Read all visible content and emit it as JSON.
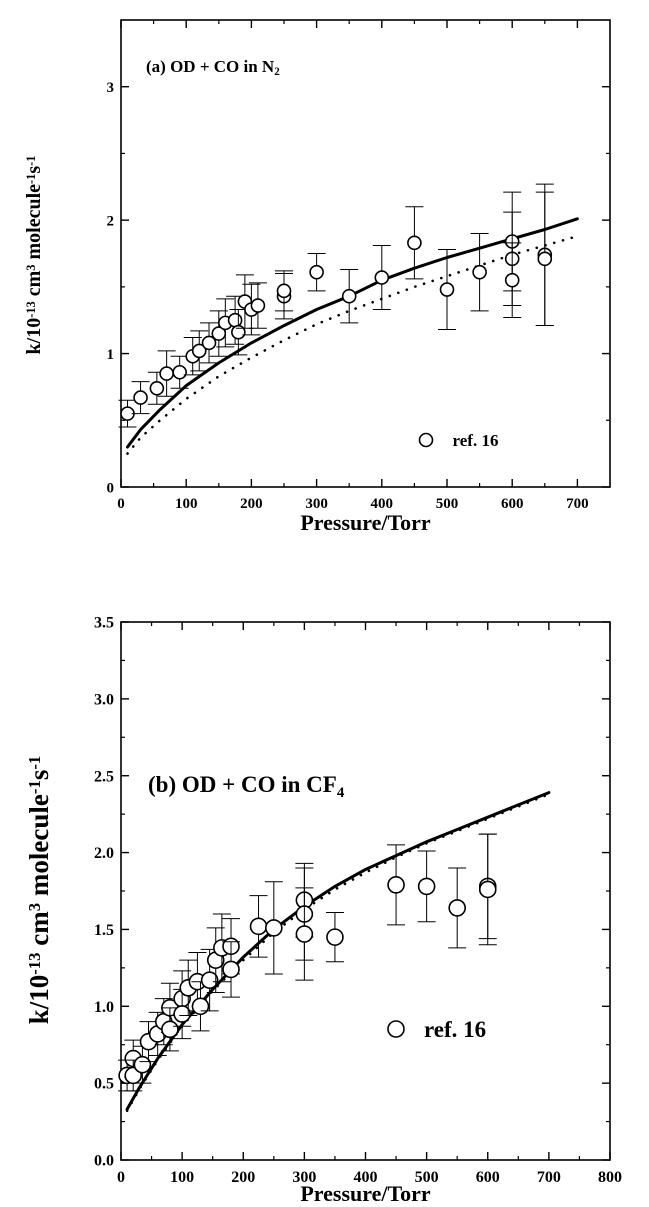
{
  "chart_data": [
    {
      "type": "scatter",
      "panel": "(a)",
      "title": "(a) OD + CO in N",
      "title_sub": "2",
      "xlabel": "Pressure/Torr",
      "ylabel_parts": [
        "k/10",
        "-13",
        " cm",
        "3",
        " molecule",
        "-1",
        "s",
        "-1"
      ],
      "xlim": [
        0,
        750
      ],
      "ylim": [
        0,
        3.5
      ],
      "xticks": [
        0,
        100,
        200,
        300,
        400,
        500,
        600,
        700
      ],
      "xtick_labels": [
        "0",
        "100",
        "200",
        "300",
        "400",
        "500",
        "600",
        "700"
      ],
      "yticks": [
        0,
        1,
        2,
        3
      ],
      "ytick_labels": [
        "0",
        "1",
        "2",
        "3"
      ],
      "legend": "ref. 16",
      "legend_position": "lower-right",
      "grid": false,
      "series": [
        {
          "name": "ref. 16",
          "style": "open-circle-with-error-bars",
          "points": [
            {
              "x": 10,
              "y": 0.55,
              "err": 0.1
            },
            {
              "x": 30,
              "y": 0.67,
              "err": 0.12
            },
            {
              "x": 55,
              "y": 0.74,
              "err": 0.12
            },
            {
              "x": 70,
              "y": 0.85,
              "err": 0.17
            },
            {
              "x": 90,
              "y": 0.86,
              "err": 0.12
            },
            {
              "x": 110,
              "y": 0.98,
              "err": 0.14
            },
            {
              "x": 120,
              "y": 1.02,
              "err": 0.15
            },
            {
              "x": 135,
              "y": 1.08,
              "err": 0.15
            },
            {
              "x": 150,
              "y": 1.15,
              "err": 0.17
            },
            {
              "x": 160,
              "y": 1.23,
              "err": 0.18
            },
            {
              "x": 175,
              "y": 1.25,
              "err": 0.18
            },
            {
              "x": 180,
              "y": 1.16,
              "err": 0.17
            },
            {
              "x": 190,
              "y": 1.39,
              "err": 0.2
            },
            {
              "x": 200,
              "y": 1.33,
              "err": 0.19
            },
            {
              "x": 210,
              "y": 1.36,
              "err": 0.17
            },
            {
              "x": 250,
              "y": 1.43,
              "err": 0.17
            },
            {
              "x": 250,
              "y": 1.47,
              "err": 0.15
            },
            {
              "x": 300,
              "y": 1.61,
              "err": 0.14
            },
            {
              "x": 350,
              "y": 1.43,
              "err": 0.2
            },
            {
              "x": 400,
              "y": 1.57,
              "err": 0.24
            },
            {
              "x": 450,
              "y": 1.83,
              "err": 0.27
            },
            {
              "x": 500,
              "y": 1.48,
              "err": 0.3
            },
            {
              "x": 550,
              "y": 1.61,
              "err": 0.29
            },
            {
              "x": 600,
              "y": 1.84,
              "err": 0.37
            },
            {
              "x": 600,
              "y": 1.71,
              "err": 0.35
            },
            {
              "x": 600,
              "y": 1.55,
              "err": 0.28
            },
            {
              "x": 650,
              "y": 1.74,
              "err": 0.53
            },
            {
              "x": 650,
              "y": 1.71,
              "err": 0.5
            }
          ]
        },
        {
          "style": "solid-line",
          "points": [
            [
              10,
              0.3
            ],
            [
              30,
              0.43
            ],
            [
              60,
              0.58
            ],
            [
              100,
              0.76
            ],
            [
              150,
              0.93
            ],
            [
              200,
              1.08
            ],
            [
              250,
              1.21
            ],
            [
              300,
              1.33
            ],
            [
              350,
              1.43
            ],
            [
              400,
              1.55
            ],
            [
              450,
              1.64
            ],
            [
              500,
              1.72
            ],
            [
              550,
              1.79
            ],
            [
              600,
              1.86
            ],
            [
              650,
              1.93
            ],
            [
              700,
              2.01
            ]
          ]
        },
        {
          "style": "dotted-line",
          "points": [
            [
              10,
              0.25
            ],
            [
              30,
              0.37
            ],
            [
              60,
              0.5
            ],
            [
              100,
              0.66
            ],
            [
              150,
              0.83
            ],
            [
              200,
              0.97
            ],
            [
              250,
              1.1
            ],
            [
              300,
              1.22
            ],
            [
              350,
              1.32
            ],
            [
              400,
              1.41
            ],
            [
              450,
              1.5
            ],
            [
              500,
              1.58
            ],
            [
              550,
              1.66
            ],
            [
              600,
              1.74
            ],
            [
              650,
              1.81
            ],
            [
              700,
              1.88
            ]
          ]
        }
      ]
    },
    {
      "type": "scatter",
      "panel": "(b)",
      "title": "(b) OD + CO in CF",
      "title_sub": "4",
      "xlabel": "Pressure/Torr",
      "ylabel_parts": [
        "k/10",
        "-13",
        " cm",
        "3",
        " molecule",
        "-1",
        "s",
        "-1"
      ],
      "xlim": [
        0,
        800
      ],
      "ylim": [
        0,
        3.5
      ],
      "xticks": [
        0,
        100,
        200,
        300,
        400,
        500,
        600,
        700,
        800
      ],
      "xtick_labels": [
        "0",
        "100",
        "200",
        "300",
        "400",
        "500",
        "600",
        "700",
        "800"
      ],
      "yticks": [
        0,
        0.5,
        1,
        1.5,
        2,
        2.5,
        3,
        3.5
      ],
      "ytick_labels": [
        "0.0",
        "0.5",
        "1.0",
        "1.5",
        "2.0",
        "2.5",
        "3.0",
        "3.5"
      ],
      "legend": "ref. 16",
      "legend_position": "lower-right",
      "grid": false,
      "series": [
        {
          "name": "ref. 16",
          "style": "open-circle-with-error-bars",
          "points": [
            {
              "x": 10,
              "y": 0.55,
              "err": 0.1
            },
            {
              "x": 20,
              "y": 0.66,
              "err": 0.12
            },
            {
              "x": 20,
              "y": 0.55,
              "err": 0.1
            },
            {
              "x": 35,
              "y": 0.62,
              "err": 0.12
            },
            {
              "x": 45,
              "y": 0.77,
              "err": 0.13
            },
            {
              "x": 60,
              "y": 0.82,
              "err": 0.14
            },
            {
              "x": 70,
              "y": 0.9,
              "err": 0.15
            },
            {
              "x": 80,
              "y": 0.99,
              "err": 0.16
            },
            {
              "x": 80,
              "y": 0.85,
              "err": 0.14
            },
            {
              "x": 100,
              "y": 1.05,
              "err": 0.18
            },
            {
              "x": 100,
              "y": 0.95,
              "err": 0.16
            },
            {
              "x": 110,
              "y": 1.12,
              "err": 0.18
            },
            {
              "x": 125,
              "y": 1.16,
              "err": 0.19
            },
            {
              "x": 130,
              "y": 1.0,
              "err": 0.16
            },
            {
              "x": 145,
              "y": 1.17,
              "err": 0.2
            },
            {
              "x": 155,
              "y": 1.3,
              "err": 0.21
            },
            {
              "x": 165,
              "y": 1.38,
              "err": 0.22
            },
            {
              "x": 180,
              "y": 1.39,
              "err": 0.18
            },
            {
              "x": 180,
              "y": 1.24,
              "err": 0.18
            },
            {
              "x": 225,
              "y": 1.52,
              "err": 0.2
            },
            {
              "x": 250,
              "y": 1.51,
              "err": 0.3
            },
            {
              "x": 300,
              "y": 1.69,
              "err": 0.24
            },
            {
              "x": 300,
              "y": 1.6,
              "err": 0.3
            },
            {
              "x": 300,
              "y": 1.47,
              "err": 0.3
            },
            {
              "x": 350,
              "y": 1.45,
              "err": 0.16
            },
            {
              "x": 450,
              "y": 1.79,
              "err": 0.26
            },
            {
              "x": 500,
              "y": 1.78,
              "err": 0.23
            },
            {
              "x": 550,
              "y": 1.64,
              "err": 0.26
            },
            {
              "x": 600,
              "y": 1.78,
              "err": 0.34
            },
            {
              "x": 600,
              "y": 1.76,
              "err": 0.36
            }
          ]
        },
        {
          "style": "solid-line",
          "points": [
            [
              10,
              0.33
            ],
            [
              30,
              0.47
            ],
            [
              60,
              0.66
            ],
            [
              100,
              0.88
            ],
            [
              150,
              1.11
            ],
            [
              200,
              1.32
            ],
            [
              250,
              1.5
            ],
            [
              300,
              1.65
            ],
            [
              350,
              1.78
            ],
            [
              400,
              1.89
            ],
            [
              450,
              1.98
            ],
            [
              500,
              2.07
            ],
            [
              550,
              2.15
            ],
            [
              600,
              2.23
            ],
            [
              650,
              2.31
            ],
            [
              700,
              2.39
            ]
          ]
        },
        {
          "style": "dotted-line",
          "points": [
            [
              10,
              0.32
            ],
            [
              30,
              0.46
            ],
            [
              60,
              0.65
            ],
            [
              100,
              0.87
            ],
            [
              150,
              1.1
            ],
            [
              200,
              1.3
            ],
            [
              250,
              1.48
            ],
            [
              300,
              1.63
            ],
            [
              350,
              1.76
            ],
            [
              400,
              1.87
            ],
            [
              450,
              1.97
            ],
            [
              500,
              2.06
            ],
            [
              550,
              2.14
            ],
            [
              600,
              2.22
            ],
            [
              650,
              2.3
            ],
            [
              700,
              2.38
            ]
          ]
        }
      ]
    }
  ]
}
